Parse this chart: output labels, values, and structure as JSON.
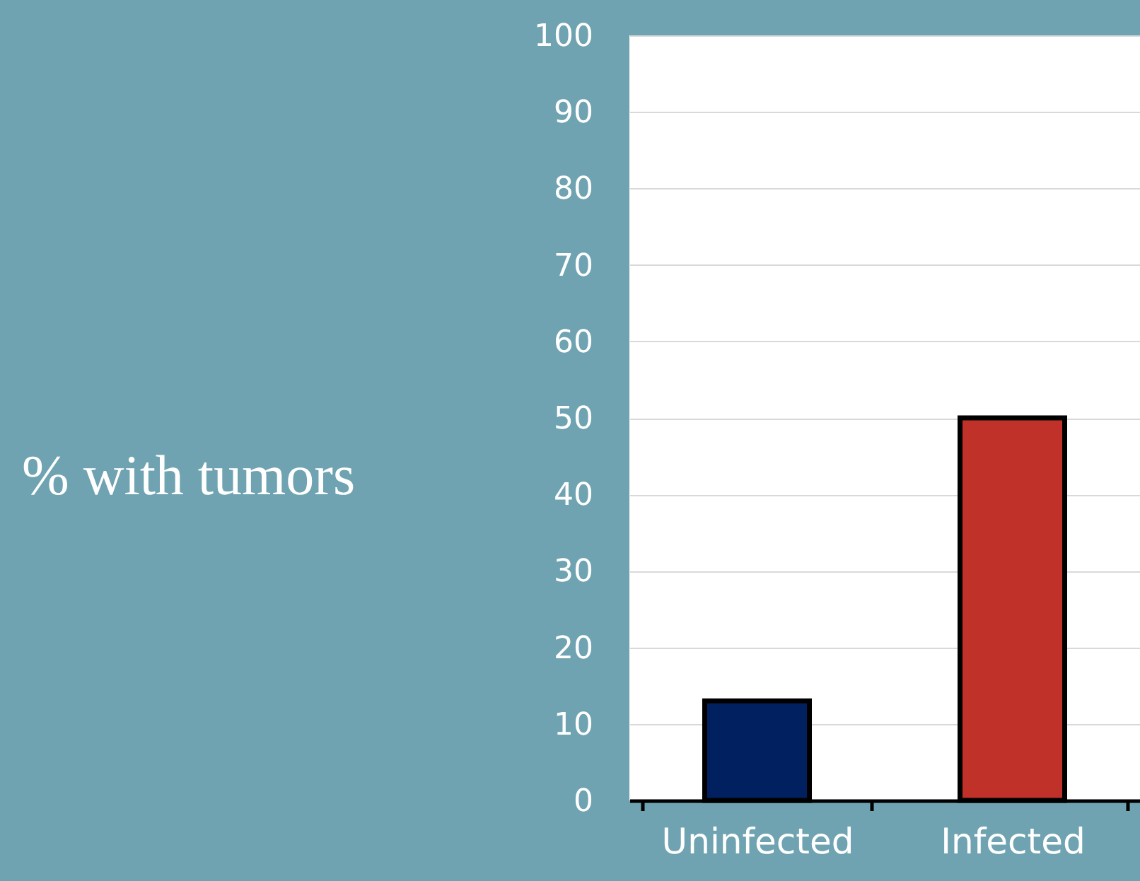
{
  "chart_data": {
    "type": "bar",
    "ylabel": "% with tumors",
    "categories": [
      "Uninfected",
      "Infected"
    ],
    "values": [
      13,
      50
    ],
    "colors": [
      "#002060",
      "#c0312a"
    ],
    "ylim": [
      0,
      100
    ],
    "yticks": [
      0,
      10,
      20,
      30,
      40,
      50,
      60,
      70,
      80,
      90,
      100
    ],
    "grid": "y"
  }
}
